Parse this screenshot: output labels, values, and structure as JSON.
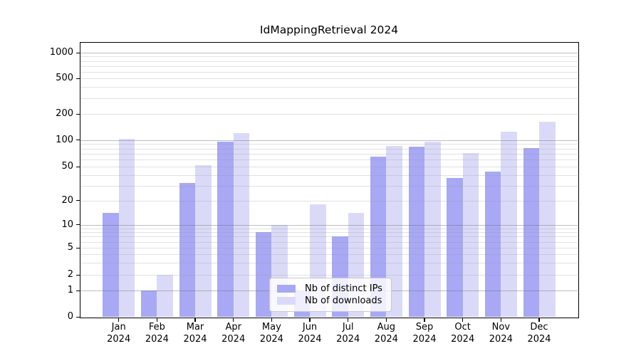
{
  "chart_data": {
    "type": "bar",
    "title": "IdMappingRetrieval 2024",
    "categories": [
      "Jan",
      "Feb",
      "Mar",
      "Apr",
      "May",
      "Jun",
      "Jul",
      "Aug",
      "Sep",
      "Oct",
      "Nov",
      "Dec"
    ],
    "year_label": "2024",
    "series": [
      {
        "name": "Nb of distinct IPs",
        "color": "#a8a8f5",
        "values": [
          14,
          1,
          32,
          95,
          8,
          1,
          7,
          65,
          84,
          37,
          44,
          81
        ]
      },
      {
        "name": "Nb of downloads",
        "color": "#dadaf8",
        "values": [
          103,
          2,
          52,
          120,
          10,
          18,
          14,
          86,
          95,
          71,
          125,
          162
        ]
      }
    ],
    "y_ticks": [
      0,
      1,
      2,
      5,
      10,
      20,
      50,
      100,
      200,
      500,
      1000
    ],
    "xlabel": "",
    "ylabel": "",
    "yscale": "log-like (1-2-5 labeled ticks, 0 baseline)",
    "ylim": [
      0,
      1300
    ],
    "grid": "horizontal, major and minor",
    "legend_position": "lower center"
  }
}
